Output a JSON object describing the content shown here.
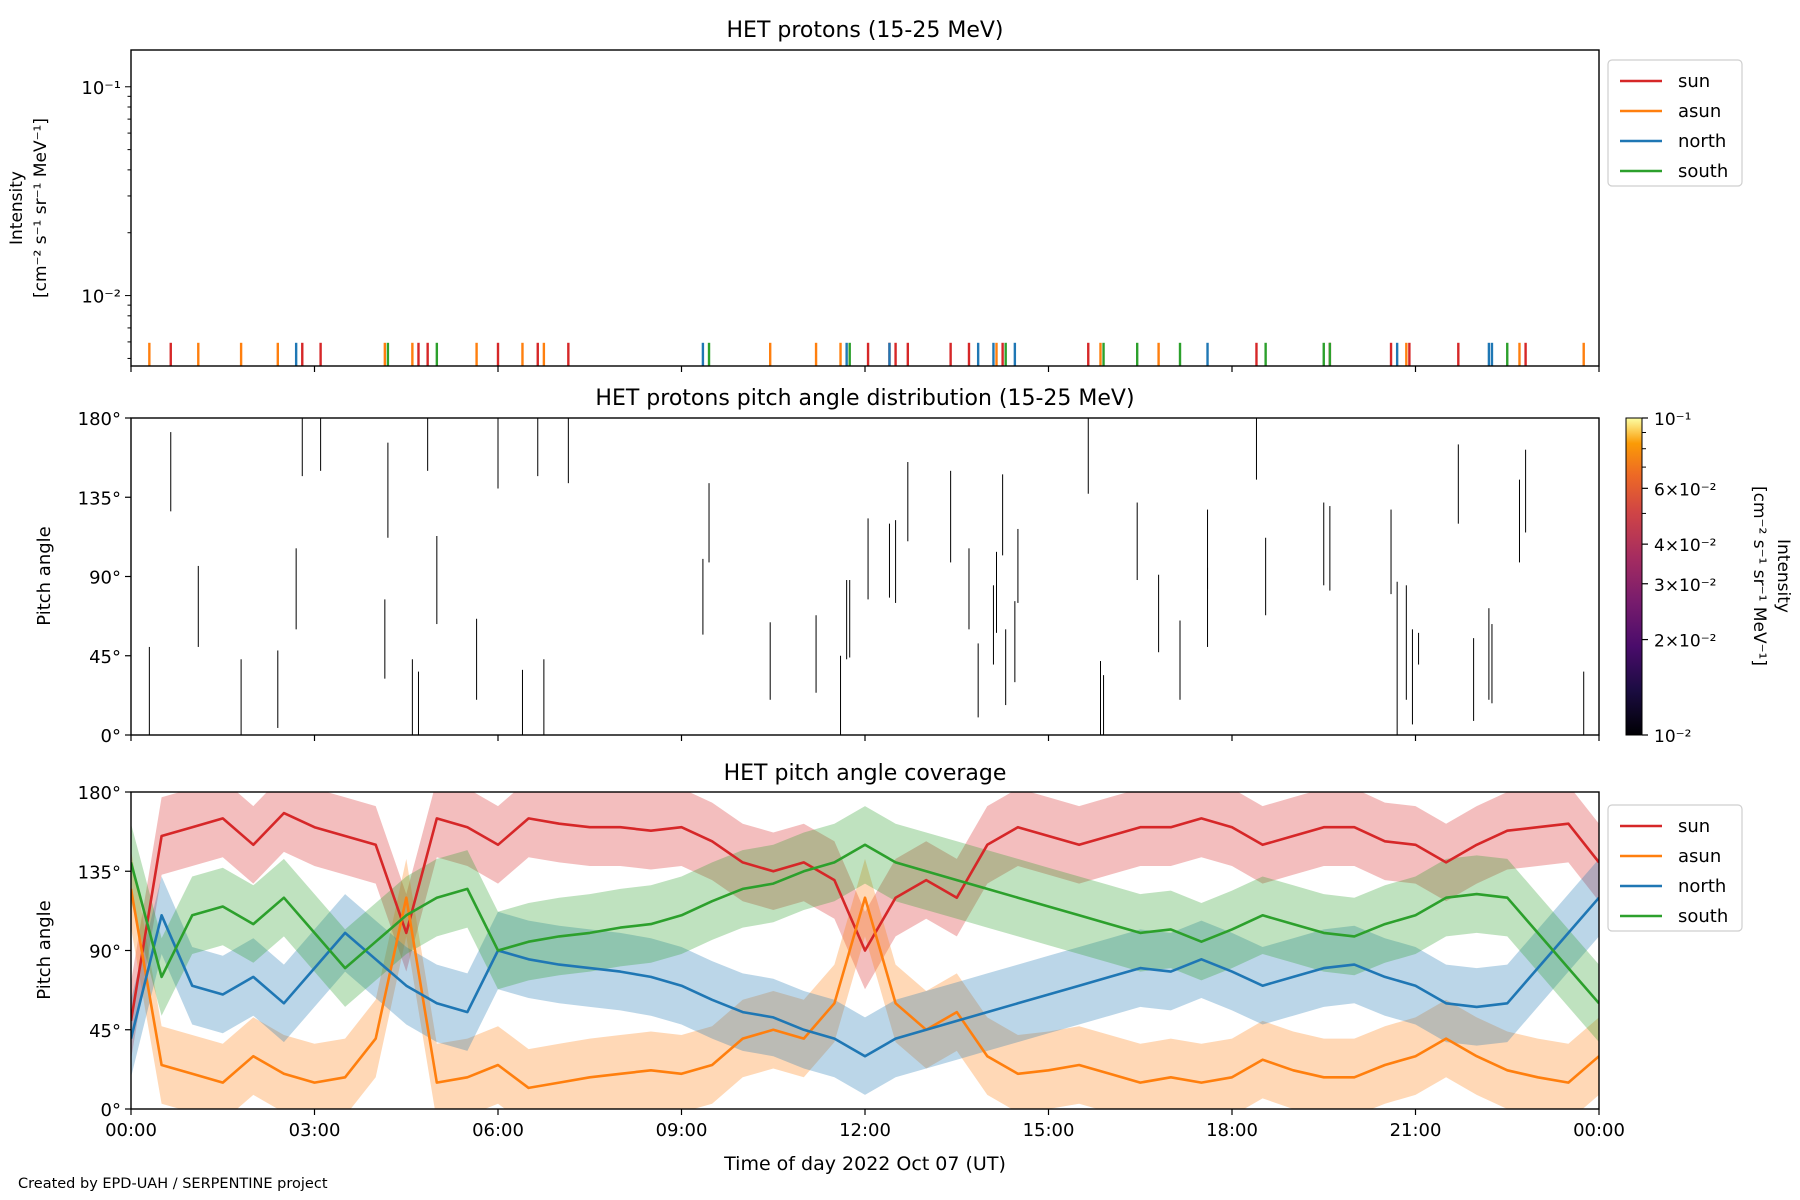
{
  "figure": {
    "credit": "Created by EPD-UAH / SERPENTINE project",
    "xlabel": "Time of day 2022 Oct 07 (UT)",
    "xticks": [
      "00:00",
      "03:00",
      "06:00",
      "09:00",
      "12:00",
      "15:00",
      "18:00",
      "21:00",
      "00:00"
    ]
  },
  "chart_data": [
    {
      "type": "scatter",
      "title": "HET protons (15-25 MeV)",
      "ylabel": [
        "Intensity",
        "[cm⁻² s⁻¹ sr⁻¹ MeV⁻¹]"
      ],
      "yscale": "log",
      "ylim": [
        0.0046,
        0.15
      ],
      "yticks": [
        {
          "value": 0.1,
          "label": "10⁻¹"
        },
        {
          "value": 0.01,
          "label": "10⁻²"
        }
      ],
      "xlim_hours": [
        0,
        24
      ],
      "legend": {
        "position": "right-top",
        "entries": [
          "sun",
          "asun",
          "north",
          "south"
        ]
      },
      "colors": {
        "sun": "#d62728",
        "asun": "#ff7f0e",
        "north": "#1f77b4",
        "south": "#2ca02c"
      },
      "series": [
        {
          "name": "sun",
          "value": 0.0055,
          "hours": [
            0.65,
            2.8,
            3.1,
            4.7,
            4.85,
            6.0,
            6.65,
            7.15,
            12.05,
            12.4,
            12.5,
            12.7,
            13.4,
            13.7,
            14.25,
            15.65,
            18.4,
            19.6,
            20.6,
            20.9,
            21.7,
            22.8
          ]
        },
        {
          "name": "asun",
          "value": 0.0055,
          "hours": [
            0.3,
            1.1,
            1.8,
            2.4,
            4.15,
            4.6,
            5.65,
            6.4,
            6.75,
            10.45,
            11.2,
            11.6,
            14.15,
            15.85,
            16.8,
            20.85,
            22.7,
            23.75
          ]
        },
        {
          "name": "north",
          "value": 0.0055,
          "hours": [
            2.7,
            9.35,
            11.7,
            12.4,
            13.85,
            14.1,
            14.45,
            17.6,
            20.7,
            22.2,
            22.25
          ]
        },
        {
          "name": "south",
          "value": 0.0055,
          "hours": [
            4.2,
            5.0,
            9.45,
            11.75,
            14.3,
            15.9,
            16.45,
            17.15,
            18.55,
            19.5,
            19.6,
            22.5
          ]
        }
      ]
    },
    {
      "type": "heatmap",
      "title": "HET protons pitch angle distribution (15-25 MeV)",
      "ylabel": "Pitch angle",
      "ylim": [
        0,
        180
      ],
      "yticks": [
        "0°",
        "45°",
        "90°",
        "135°",
        "180°"
      ],
      "xlim_hours": [
        0,
        24
      ],
      "colorbar": {
        "label": [
          "Intensity",
          "[cm⁻² s⁻¹ sr⁻¹ MeV⁻¹]"
        ],
        "scale": "log",
        "range": [
          0.01,
          0.1
        ],
        "ticks": [
          {
            "value": 0.1,
            "label": "10⁻¹"
          },
          {
            "value": 0.06,
            "label": "6×10⁻²"
          },
          {
            "value": 0.04,
            "label": "4×10⁻²"
          },
          {
            "value": 0.03,
            "label": "3×10⁻²"
          },
          {
            "value": 0.02,
            "label": "2×10⁻²"
          },
          {
            "value": 0.01,
            "label": "10⁻²"
          }
        ]
      },
      "segments": [
        [
          0.3,
          0,
          50
        ],
        [
          0.65,
          127,
          172
        ],
        [
          1.1,
          50,
          96
        ],
        [
          1.8,
          0,
          43
        ],
        [
          2.4,
          4,
          48
        ],
        [
          2.7,
          60,
          106
        ],
        [
          2.8,
          147,
          180
        ],
        [
          3.1,
          150,
          180
        ],
        [
          4.15,
          32,
          77
        ],
        [
          4.2,
          112,
          166
        ],
        [
          4.6,
          0,
          43
        ],
        [
          4.7,
          0,
          36
        ],
        [
          4.85,
          150,
          180
        ],
        [
          5.0,
          63,
          113
        ],
        [
          5.65,
          20,
          66
        ],
        [
          6.0,
          140,
          180
        ],
        [
          6.4,
          0,
          37
        ],
        [
          6.65,
          147,
          180
        ],
        [
          6.75,
          0,
          43
        ],
        [
          7.15,
          143,
          180
        ],
        [
          9.35,
          57,
          100
        ],
        [
          9.45,
          98,
          143
        ],
        [
          10.45,
          20,
          64
        ],
        [
          11.2,
          24,
          68
        ],
        [
          11.6,
          0,
          45
        ],
        [
          11.7,
          43,
          88
        ],
        [
          11.75,
          44,
          88
        ],
        [
          12.05,
          77,
          123
        ],
        [
          12.4,
          78,
          120
        ],
        [
          12.5,
          75,
          122
        ],
        [
          12.7,
          110,
          155
        ],
        [
          13.4,
          98,
          150
        ],
        [
          13.7,
          60,
          106
        ],
        [
          13.85,
          10,
          52
        ],
        [
          14.1,
          40,
          85
        ],
        [
          14.15,
          58,
          104
        ],
        [
          14.25,
          102,
          148
        ],
        [
          14.3,
          17,
          60
        ],
        [
          14.45,
          30,
          76
        ],
        [
          14.5,
          75,
          117
        ],
        [
          15.65,
          137,
          180
        ],
        [
          15.85,
          0,
          42
        ],
        [
          15.9,
          0,
          34
        ],
        [
          16.45,
          88,
          132
        ],
        [
          16.8,
          47,
          91
        ],
        [
          17.15,
          20,
          65
        ],
        [
          17.6,
          83,
          128
        ],
        [
          17.6,
          50,
          95
        ],
        [
          18.4,
          145,
          180
        ],
        [
          18.55,
          68,
          112
        ],
        [
          19.5,
          85,
          132
        ],
        [
          19.6,
          82,
          130
        ],
        [
          20.6,
          80,
          128
        ],
        [
          20.7,
          0,
          87
        ],
        [
          20.85,
          20,
          85
        ],
        [
          20.95,
          6,
          60
        ],
        [
          21.05,
          40,
          58
        ],
        [
          21.7,
          120,
          165
        ],
        [
          21.95,
          8,
          55
        ],
        [
          22.2,
          20,
          72
        ],
        [
          22.25,
          18,
          63
        ],
        [
          22.7,
          98,
          145
        ],
        [
          22.8,
          115,
          162
        ],
        [
          23.75,
          0,
          36
        ]
      ]
    },
    {
      "type": "area",
      "title": "HET pitch angle coverage",
      "ylabel": "Pitch angle",
      "ylim": [
        0,
        180
      ],
      "yticks": [
        "0°",
        "45°",
        "90°",
        "135°",
        "180°"
      ],
      "xlim_hours": [
        0,
        24
      ],
      "legend": {
        "position": "right-top",
        "entries": [
          "sun",
          "asun",
          "north",
          "south"
        ]
      },
      "band_half_width_deg": 22,
      "series": [
        {
          "name": "sun",
          "color": "#d62728",
          "hours": [
            0,
            0.5,
            1,
            1.5,
            2,
            2.5,
            3,
            3.5,
            4,
            4.5,
            5,
            5.5,
            6,
            6.5,
            7,
            7.5,
            8,
            8.5,
            9,
            9.5,
            10,
            10.5,
            11,
            11.5,
            12,
            12.5,
            13,
            13.5,
            14,
            14.5,
            15,
            15.5,
            16,
            16.5,
            17,
            17.5,
            18,
            18.5,
            19,
            19.5,
            20,
            20.5,
            21,
            21.5,
            22,
            22.5,
            23,
            23.5,
            24
          ],
          "values": [
            50,
            155,
            160,
            165,
            150,
            168,
            160,
            155,
            150,
            100,
            165,
            160,
            150,
            165,
            162,
            160,
            160,
            158,
            160,
            152,
            140,
            135,
            140,
            130,
            90,
            120,
            130,
            120,
            150,
            160,
            155,
            150,
            155,
            160,
            160,
            165,
            160,
            150,
            155,
            160,
            160,
            152,
            150,
            140,
            150,
            158,
            160,
            162,
            140
          ]
        },
        {
          "name": "asun",
          "color": "#ff7f0e",
          "hours": [
            0,
            0.5,
            1,
            1.5,
            2,
            2.5,
            3,
            3.5,
            4,
            4.5,
            5,
            5.5,
            6,
            6.5,
            7,
            7.5,
            8,
            8.5,
            9,
            9.5,
            10,
            10.5,
            11,
            11.5,
            12,
            12.5,
            13,
            13.5,
            14,
            14.5,
            15,
            15.5,
            16,
            16.5,
            17,
            17.5,
            18,
            18.5,
            19,
            19.5,
            20,
            20.5,
            21,
            21.5,
            22,
            22.5,
            23,
            23.5,
            24
          ],
          "values": [
            125,
            25,
            20,
            15,
            30,
            20,
            15,
            18,
            40,
            120,
            15,
            18,
            25,
            12,
            15,
            18,
            20,
            22,
            20,
            25,
            40,
            45,
            40,
            60,
            120,
            60,
            45,
            55,
            30,
            20,
            22,
            25,
            20,
            15,
            18,
            15,
            18,
            28,
            22,
            18,
            18,
            25,
            30,
            40,
            30,
            22,
            18,
            15,
            30
          ]
        },
        {
          "name": "north",
          "color": "#1f77b4",
          "hours": [
            0,
            0.5,
            1,
            1.5,
            2,
            2.5,
            3,
            3.5,
            4,
            4.5,
            5,
            5.5,
            6,
            6.5,
            7,
            7.5,
            8,
            8.5,
            9,
            9.5,
            10,
            10.5,
            11,
            11.5,
            12,
            12.5,
            13,
            13.5,
            14,
            14.5,
            15,
            15.5,
            16,
            16.5,
            17,
            17.5,
            18,
            18.5,
            19,
            19.5,
            20,
            20.5,
            21,
            21.5,
            22,
            22.5,
            23,
            23.5,
            24
          ],
          "values": [
            40,
            110,
            70,
            65,
            75,
            60,
            80,
            100,
            85,
            70,
            60,
            55,
            90,
            85,
            82,
            80,
            78,
            75,
            70,
            62,
            55,
            52,
            45,
            40,
            30,
            40,
            45,
            50,
            55,
            60,
            65,
            70,
            75,
            80,
            78,
            85,
            78,
            70,
            75,
            80,
            82,
            75,
            70,
            60,
            58,
            60,
            80,
            100,
            120
          ]
        },
        {
          "name": "south",
          "color": "#2ca02c",
          "hours": [
            0,
            0.5,
            1,
            1.5,
            2,
            2.5,
            3,
            3.5,
            4,
            4.5,
            5,
            5.5,
            6,
            6.5,
            7,
            7.5,
            8,
            8.5,
            9,
            9.5,
            10,
            10.5,
            11,
            11.5,
            12,
            12.5,
            13,
            13.5,
            14,
            14.5,
            15,
            15.5,
            16,
            16.5,
            17,
            17.5,
            18,
            18.5,
            19,
            19.5,
            20,
            20.5,
            21,
            21.5,
            22,
            22.5,
            23,
            23.5,
            24
          ],
          "values": [
            140,
            75,
            110,
            115,
            105,
            120,
            100,
            80,
            95,
            110,
            120,
            125,
            90,
            95,
            98,
            100,
            103,
            105,
            110,
            118,
            125,
            128,
            135,
            140,
            150,
            140,
            135,
            130,
            125,
            120,
            115,
            110,
            105,
            100,
            102,
            95,
            102,
            110,
            105,
            100,
            98,
            105,
            110,
            120,
            122,
            120,
            100,
            80,
            60
          ]
        }
      ]
    }
  ]
}
